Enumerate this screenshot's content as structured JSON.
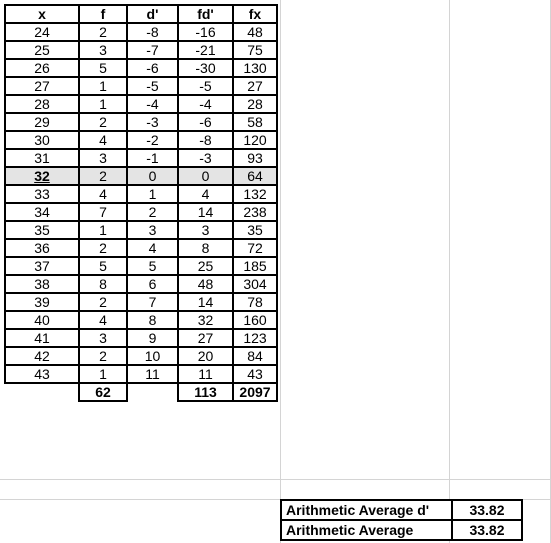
{
  "table": {
    "headers": [
      "x",
      "f",
      "d'",
      "fd'",
      "fx"
    ],
    "rows": [
      [
        "24",
        "2",
        "-8",
        "-16",
        "48"
      ],
      [
        "25",
        "3",
        "-7",
        "-21",
        "75"
      ],
      [
        "26",
        "5",
        "-6",
        "-30",
        "130"
      ],
      [
        "27",
        "1",
        "-5",
        "-5",
        "27"
      ],
      [
        "28",
        "1",
        "-4",
        "-4",
        "28"
      ],
      [
        "29",
        "2",
        "-3",
        "-6",
        "58"
      ],
      [
        "30",
        "4",
        "-2",
        "-8",
        "120"
      ],
      [
        "31",
        "3",
        "-1",
        "-3",
        "93"
      ],
      [
        "32",
        "2",
        "0",
        "0",
        "64"
      ],
      [
        "33",
        "4",
        "1",
        "4",
        "132"
      ],
      [
        "34",
        "7",
        "2",
        "14",
        "238"
      ],
      [
        "35",
        "1",
        "3",
        "3",
        "35"
      ],
      [
        "36",
        "2",
        "4",
        "8",
        "72"
      ],
      [
        "37",
        "5",
        "5",
        "25",
        "185"
      ],
      [
        "38",
        "8",
        "6",
        "48",
        "304"
      ],
      [
        "39",
        "2",
        "7",
        "14",
        "78"
      ],
      [
        "40",
        "4",
        "8",
        "32",
        "160"
      ],
      [
        "41",
        "3",
        "9",
        "27",
        "123"
      ],
      [
        "42",
        "2",
        "10",
        "20",
        "84"
      ],
      [
        "43",
        "1",
        "11",
        "11",
        "43"
      ]
    ],
    "selected_row_index": 8,
    "totals": {
      "f": "62",
      "fd": "113",
      "fx": "2097"
    }
  },
  "averages": [
    {
      "label": "Arithmetic Average d'",
      "value": "33.82"
    },
    {
      "label": "Arithmetic Average",
      "value": "33.82"
    }
  ]
}
